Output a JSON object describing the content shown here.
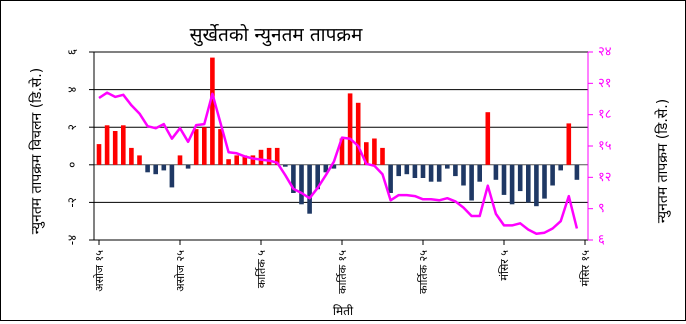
{
  "chart_data": {
    "type": "bar",
    "title": "सुर्खेतको न्युनतम तापक्रम",
    "xlabel": "मिती",
    "ylabel_left": "न्युनतम तापक्रम विचलन (डि.से.)",
    "ylabel_right": "न्युनतम तापक्रम (डि.से.)",
    "x_tick_labels": [
      "असोज १५",
      "असोज २५",
      "कार्तिक ५",
      "कार्तिक १५",
      "कार्तिक २५",
      "मंसिर ५",
      "मंसिर १५"
    ],
    "x_tick_days": [
      0,
      10,
      20,
      30,
      40,
      50,
      60
    ],
    "ylim_left": [
      -4,
      6
    ],
    "ylim_right": [
      6,
      24
    ],
    "left_ticks": [
      6,
      4,
      2,
      0,
      -2,
      -4
    ],
    "left_tick_labels": [
      "६",
      "४",
      "२",
      "०",
      "-२",
      "-४"
    ],
    "right_ticks": [
      24,
      21,
      18,
      15,
      12,
      9,
      6
    ],
    "right_tick_labels": [
      "२४",
      "२१",
      "१८",
      "१५",
      "१२",
      "९",
      "६"
    ],
    "series": [
      {
        "values": [
          1.1,
          2.1,
          1.8,
          2.1,
          0.9,
          0.5,
          -0.4,
          -0.5,
          -0.3,
          -1.2,
          0.5,
          -0.2,
          1.9,
          2.0,
          5.7,
          1.9,
          0.3,
          0.5,
          0.5,
          0.5,
          0.8,
          0.9,
          0.9,
          -0.1,
          -1.5,
          -2.1,
          -2.6,
          -1.3,
          -0.4,
          -0.2,
          1.4,
          3.8,
          3.3,
          1.2,
          1.4,
          0.9,
          -1.5,
          -0.6,
          -0.5,
          -0.7,
          -0.7,
          -0.9,
          -0.9,
          -0.2,
          -0.6,
          -1.1,
          -1.9,
          -0.9,
          2.8,
          -0.8,
          -1.6,
          -2.1,
          -1.4,
          -2.0,
          -2.2,
          -1.8,
          -1.1,
          -0.3,
          2.2,
          -0.8
        ]
      },
      {
        "values": [
          19.6,
          20.1,
          19.7,
          19.9,
          18.9,
          18.1,
          16.9,
          16.7,
          17.1,
          15.7,
          16.7,
          15.4,
          17.0,
          17.1,
          20.0,
          17.2,
          14.4,
          14.3,
          14.0,
          13.8,
          13.7,
          13.6,
          13.4,
          12.2,
          10.9,
          10.5,
          10.0,
          11.0,
          12.2,
          13.5,
          15.8,
          15.7,
          15.0,
          13.3,
          13.1,
          12.3,
          9.8,
          10.3,
          10.3,
          10.2,
          9.9,
          9.9,
          9.8,
          10.0,
          9.7,
          9.1,
          8.3,
          8.3,
          11.2,
          8.5,
          7.4,
          7.4,
          7.6,
          7.0,
          6.6,
          6.7,
          7.1,
          7.8,
          10.2,
          7.1
        ]
      }
    ],
    "colors": {
      "positive_bar": "#ff0000",
      "negative_bar": "#1f3864",
      "line": "#ff00ff",
      "right_axis": "#ff00ff",
      "axis": "#000000"
    },
    "grid": true,
    "legend": "none"
  }
}
